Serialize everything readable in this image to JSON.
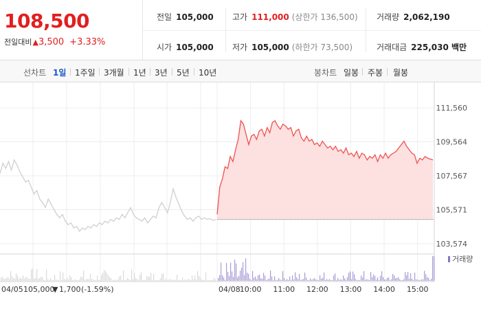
{
  "quote": {
    "price": "108,500",
    "change_label": "전일대비",
    "change_arrow": "▲",
    "change": "3,500",
    "change_pct": "+3.33%"
  },
  "stats": {
    "prev_close_label": "전일",
    "prev_close": "105,000",
    "high_label": "고가",
    "high": "111,000",
    "upper_limit": "(상한가 136,500)",
    "volume_label": "거래량",
    "volume": "2,062,190",
    "open_label": "시가",
    "open": "105,000",
    "low_label": "저가",
    "low": "105,000",
    "lower_limit": "(하한가 73,500)",
    "turnover_label": "거래대금",
    "turnover": "225,030 백만"
  },
  "tabs": {
    "line_label": "선차트",
    "line_periods": [
      "1일",
      "1주일",
      "3개월",
      "1년",
      "3년",
      "5년",
      "10년"
    ],
    "active": "1일",
    "candle_label": "봉차트",
    "candle_periods": [
      "일봉",
      "주봉",
      "월봉"
    ]
  },
  "colors": {
    "up": "#e02020",
    "down": "#1a56c6",
    "today_line": "#f05050",
    "today_fill": "#fde0e0",
    "prev_line": "#cfcfcf",
    "today_volume": "#a99bd6",
    "prev_volume": "#d9d9d9"
  },
  "chart_data": {
    "type": "line",
    "y_ticks": [
      "111,560",
      "109,564",
      "107,567",
      "105,571",
      "103,574"
    ],
    "ylim": [
      103574,
      111560
    ],
    "prev_close_line": 105000,
    "prev_day": {
      "date_label": "04/05",
      "close_label": "105,000",
      "arrow": "▼",
      "change_label": "1,700",
      "pct_label": "(-1.59%)",
      "values": [
        107700,
        108300,
        108000,
        108400,
        107900,
        108500,
        108200,
        107800,
        107500,
        107200,
        107300,
        106900,
        106500,
        106700,
        106200,
        106000,
        105700,
        106200,
        105900,
        105600,
        105300,
        105100,
        105300,
        104900,
        104700,
        104800,
        104500,
        104600,
        104300,
        104500,
        104400,
        104600,
        104500,
        104700,
        104600,
        104800,
        104700,
        104900,
        104800,
        105000,
        104900,
        105100,
        105000,
        105300,
        105100,
        105400,
        105700,
        105300,
        105100,
        105000,
        104900,
        105100,
        104800,
        105000,
        105200,
        105100,
        105700,
        106000,
        105700,
        105400,
        106000,
        106800,
        106300,
        105900,
        105500,
        105200,
        105000,
        105100,
        104900,
        105100,
        105200,
        105000,
        105100,
        105000,
        105050,
        104950,
        105000
      ]
    },
    "today": {
      "date_label": "04/08",
      "time_labels": [
        "10:00",
        "11:00",
        "12:00",
        "13:00",
        "14:00",
        "15:00"
      ],
      "values": [
        105300,
        106900,
        107400,
        108100,
        108000,
        108700,
        108400,
        109100,
        109700,
        110800,
        110600,
        110000,
        109400,
        109900,
        110000,
        109700,
        110200,
        110300,
        109900,
        110400,
        110100,
        110700,
        110800,
        110500,
        110300,
        110600,
        110500,
        110300,
        110400,
        109900,
        110200,
        110300,
        109800,
        109600,
        109900,
        109600,
        109700,
        109400,
        109500,
        109300,
        109600,
        109400,
        109200,
        109300,
        109100,
        109300,
        109000,
        109100,
        108900,
        109200,
        108800,
        108900,
        108700,
        109000,
        108600,
        108900,
        108800,
        108500,
        108700,
        108600,
        108800,
        108400,
        108800,
        108600,
        108900,
        108600,
        108800,
        108900,
        109000,
        109200,
        109400,
        109600,
        109300,
        109100,
        108900,
        108800,
        108300,
        108600,
        108500,
        108700,
        108600,
        108550,
        108500
      ],
      "start_min": 540,
      "end_min": 930
    },
    "volume_label": "거래량"
  }
}
